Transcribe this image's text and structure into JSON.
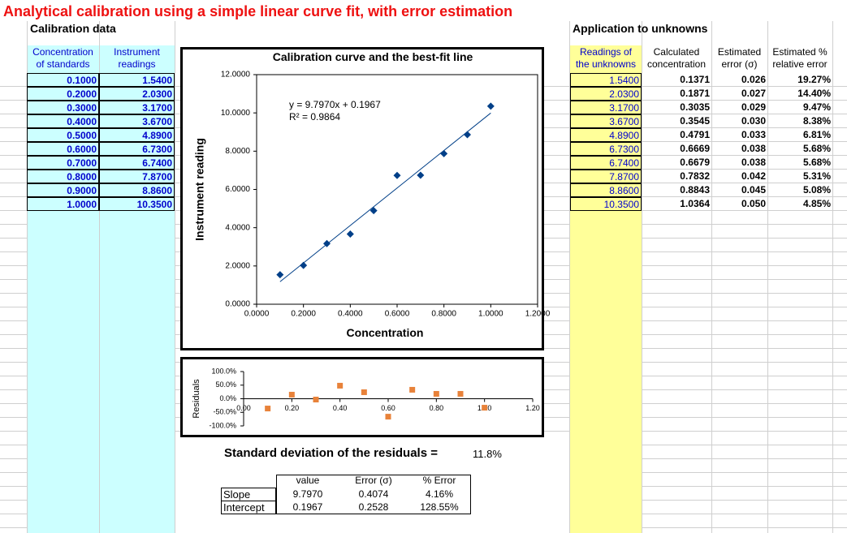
{
  "title": "Analytical calibration using a simple linear curve fit, with error estimation",
  "calibration": {
    "heading": "Calibration data",
    "columns": [
      [
        "Concentration",
        "of standards"
      ],
      [
        "Instrument",
        "readings"
      ]
    ],
    "rows": [
      [
        "0.1000",
        "1.5400"
      ],
      [
        "0.2000",
        "2.0300"
      ],
      [
        "0.3000",
        "3.1700"
      ],
      [
        "0.4000",
        "3.6700"
      ],
      [
        "0.5000",
        "4.8900"
      ],
      [
        "0.6000",
        "6.7300"
      ],
      [
        "0.7000",
        "6.7400"
      ],
      [
        "0.8000",
        "7.8700"
      ],
      [
        "0.9000",
        "8.8600"
      ],
      [
        "1.0000",
        "10.3500"
      ]
    ]
  },
  "application": {
    "heading": "Application to unknowns",
    "columns": [
      [
        "Readings of",
        "the unknowns"
      ],
      [
        "Calculated",
        "concentration"
      ],
      [
        "Estimated",
        "error (σ)"
      ],
      [
        "Estimated %",
        "relative error"
      ]
    ],
    "rows": [
      [
        "1.5400",
        "0.1371",
        "0.026",
        "19.27%"
      ],
      [
        "2.0300",
        "0.1871",
        "0.027",
        "14.40%"
      ],
      [
        "3.1700",
        "0.3035",
        "0.029",
        "9.47%"
      ],
      [
        "3.6700",
        "0.3545",
        "0.030",
        "8.38%"
      ],
      [
        "4.8900",
        "0.4791",
        "0.033",
        "6.81%"
      ],
      [
        "6.7300",
        "0.6669",
        "0.038",
        "5.68%"
      ],
      [
        "6.7400",
        "0.6679",
        "0.038",
        "5.68%"
      ],
      [
        "7.8700",
        "0.7832",
        "0.042",
        "5.31%"
      ],
      [
        "8.8600",
        "0.8843",
        "0.045",
        "5.08%"
      ],
      [
        "10.3500",
        "1.0364",
        "0.050",
        "4.85%"
      ]
    ]
  },
  "residual_stdev": {
    "label": "Standard deviation of the residuals =",
    "value": "11.8%"
  },
  "fit_table": {
    "columns": [
      "value",
      "Error (σ)",
      "% Error"
    ],
    "rows": [
      [
        "Slope",
        "9.7970",
        "0.4074",
        "4.16%"
      ],
      [
        "Intercept",
        "0.1967",
        "0.2528",
        "128.55%"
      ]
    ]
  },
  "chart_data": [
    {
      "type": "scatter",
      "title": "Calibration curve and the best-fit line",
      "xlabel": "Concentration",
      "ylabel": "Instrument reading",
      "x": [
        0.1,
        0.2,
        0.3,
        0.4,
        0.5,
        0.6,
        0.7,
        0.8,
        0.9,
        1.0
      ],
      "values": [
        1.54,
        2.03,
        3.17,
        3.67,
        4.89,
        6.73,
        6.74,
        7.87,
        8.86,
        10.35
      ],
      "color": "#003f88",
      "marker": "diamond",
      "trendline": {
        "slope": 9.797,
        "intercept": 0.1967,
        "color": "#003f88"
      },
      "annotations": [
        "y = 9.7970x + 0.1967",
        "R² = 0.9864"
      ],
      "xlim": [
        0,
        1.2
      ],
      "xticks": [
        {
          "value": 0,
          "label": "0.0000"
        },
        {
          "value": 0.2,
          "label": "0.2000"
        },
        {
          "value": 0.4,
          "label": "0.4000"
        },
        {
          "value": 0.6,
          "label": "0.6000"
        },
        {
          "value": 0.8,
          "label": "0.8000"
        },
        {
          "value": 1.0,
          "label": "1.0000"
        },
        {
          "value": 1.2,
          "label": "1.2000"
        }
      ],
      "ylim": [
        0,
        12
      ],
      "yticks": [
        {
          "value": 0,
          "label": "0.0000"
        },
        {
          "value": 2,
          "label": "2.0000"
        },
        {
          "value": 4,
          "label": "4.0000"
        },
        {
          "value": 6,
          "label": "6.0000"
        },
        {
          "value": 8,
          "label": "8.0000"
        },
        {
          "value": 10,
          "label": "10.0000"
        },
        {
          "value": 12,
          "label": "12.0000"
        }
      ]
    },
    {
      "type": "scatter",
      "ylabel": "Residuals",
      "x": [
        0.1,
        0.2,
        0.3,
        0.4,
        0.5,
        0.6,
        0.7,
        0.8,
        0.9,
        1.0
      ],
      "values": [
        -36,
        15,
        -3,
        48,
        24,
        -66,
        33,
        18,
        18,
        -33
      ],
      "color": "#e8823a",
      "marker": "square",
      "xlim": [
        0,
        1.2
      ],
      "xticks": [
        {
          "value": 0,
          "label": "0.00"
        },
        {
          "value": 0.2,
          "label": "0.20"
        },
        {
          "value": 0.4,
          "label": "0.40"
        },
        {
          "value": 0.6,
          "label": "0.60"
        },
        {
          "value": 0.8,
          "label": "0.80"
        },
        {
          "value": 1.0,
          "label": "1.00"
        },
        {
          "value": 1.2,
          "label": "1.20"
        }
      ],
      "ylim": [
        -100,
        100
      ],
      "yticks": [
        {
          "value": 100,
          "label": "100.0%"
        },
        {
          "value": 50,
          "label": "50.0%"
        },
        {
          "value": 0,
          "label": "0.0%"
        },
        {
          "value": -50,
          "label": "-50.0%"
        },
        {
          "value": -100,
          "label": "-100.0%"
        }
      ]
    }
  ]
}
